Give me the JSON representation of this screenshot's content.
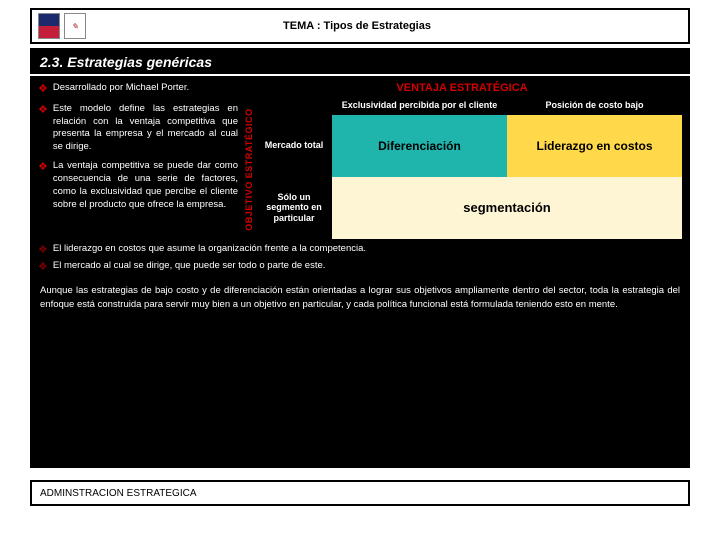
{
  "banner": {
    "title": "TEMA : Tipos de Estrategias"
  },
  "section_header": "2.3. Estrategias genéricas",
  "ventaja_title": "VENTAJA ESTRATÉGICA",
  "ventaja_color": "#d40000",
  "y_axis_label": "OBJETIVO ESTRATÉGICO",
  "y_axis_color": "#d40000",
  "col_headers": {
    "left": "Exclusividad percibida por el cliente",
    "right": "Posición de costo bajo"
  },
  "row_labels": {
    "top": "Mercado total",
    "bottom": "Sólo un segmento en particular"
  },
  "cells": {
    "diff": {
      "label": "Diferenciación",
      "bg": "#1fb5ad"
    },
    "lid": {
      "label": "Liderazgo en costos",
      "bg": "#ffd94a"
    },
    "seg": {
      "label": "segmentación",
      "bg": "#fdf5d4"
    }
  },
  "bullets_left": [
    "Desarrollado por Michael Porter.",
    "Este modelo define las estrategias en relación con la ventaja competitiva que presenta la empresa y el mercado al cual se dirige.",
    "La ventaja competitiva se puede dar como consecuencia de una serie de factores, como la exclusividad que percibe el cliente sobre el producto que ofrece la empresa."
  ],
  "bullets_bottom": [
    "El liderazgo en costos que asume la organización frente a la competencia.",
    "El mercado al cual se dirige, que puede ser todo o parte de este."
  ],
  "summary": "Aunque las estrategias de bajo costo y de diferenciación están orientadas a lograr sus objetivos ampliamente dentro del sector, toda la estrategia del enfoque está construida para servir muy bien a un objetivo en particular, y cada política funcional está formulada teniendo esto en mente.",
  "footer": "ADMINSTRACION ESTRATEGICA"
}
